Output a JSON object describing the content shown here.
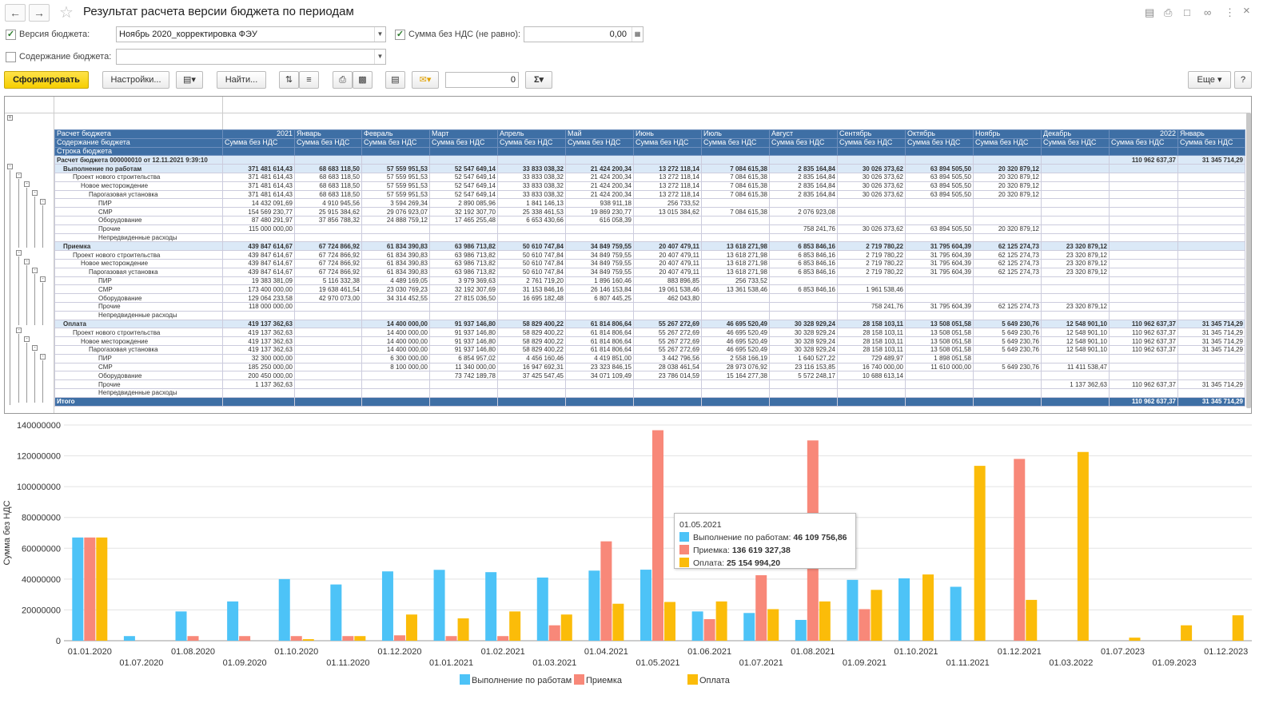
{
  "window": {
    "title": "Результат расчета версии бюджета по периодам"
  },
  "filters": {
    "version_label": "Версия бюджета:",
    "version_value": "Ноябрь 2020_корректировка ФЭУ",
    "sum_label": "Сумма без НДС (не равно):",
    "sum_value": "0,00",
    "content_label": "Содержание бюджета:",
    "content_value": ""
  },
  "toolbar": {
    "generate": "Сформировать",
    "settings": "Настройки...",
    "find": "Найти...",
    "counter": "0",
    "more": "Еще",
    "help": "?"
  },
  "colors": {
    "header": "#3e6fa5",
    "row_hl": "#dbe9f7",
    "blue": "#4dc3f7",
    "red": "#f88879",
    "yellow": "#fbbc09"
  },
  "report": {
    "header_rows": [
      [
        "Расчет бюджета",
        "2021",
        "Январь",
        "Февраль",
        "Март",
        "Апрель",
        "Май",
        "Июнь",
        "Июль",
        "Август",
        "Сентябрь",
        "Октябрь",
        "Ноябрь",
        "Декабрь",
        "2022",
        "Январь"
      ],
      [
        "Содержание бюджета",
        "Сумма без НДС",
        "Сумма без НДС",
        "Сумма без НДС",
        "Сумма без НДС",
        "Сумма без НДС",
        "Сумма без НДС",
        "Сумма без НДС",
        "Сумма без НДС",
        "Сумма без НДС",
        "Сумма без НДС",
        "Сумма без НДС",
        "Сумма без НДС",
        "Сумма без НДС",
        "Сумма без НДС",
        "Сумма без НДС"
      ],
      [
        "Строка бюджета",
        "",
        "",
        "",
        "",
        "",
        "",
        "",
        "",
        "",
        "",
        "",
        "",
        "",
        "",
        ""
      ]
    ],
    "rows": [
      {
        "k": "root",
        "c": [
          "Расчет бюджета 000000010 от 12.11.2021 9:39:10",
          "",
          "",
          "",
          "",
          "",
          "",
          "",
          "",
          "",
          "",
          "",
          "",
          "",
          "110 962 637,37",
          "31 345 714,29"
        ]
      },
      {
        "k": "lvl",
        "i": 1,
        "c": [
          "Выполнение по работам",
          "371 481 614,43",
          "68 683 118,50",
          "57 559 951,53",
          "52 547 649,14",
          "33 833 038,32",
          "21 424 200,34",
          "13 272 118,14",
          "7 084 615,38",
          "2 835 164,84",
          "30 026 373,62",
          "63 894 505,50",
          "20 320 879,12",
          "",
          "",
          ""
        ]
      },
      {
        "k": "",
        "i": 2,
        "c": [
          "Проект нового строительства",
          "371 481 614,43",
          "68 683 118,50",
          "57 559 951,53",
          "52 547 649,14",
          "33 833 038,32",
          "21 424 200,34",
          "13 272 118,14",
          "7 084 615,38",
          "2 835 164,84",
          "30 026 373,62",
          "63 894 505,50",
          "20 320 879,12",
          "",
          "",
          ""
        ]
      },
      {
        "k": "",
        "i": 3,
        "c": [
          "Новое месторождение",
          "371 481 614,43",
          "68 683 118,50",
          "57 559 951,53",
          "52 547 649,14",
          "33 833 038,32",
          "21 424 200,34",
          "13 272 118,14",
          "7 084 615,38",
          "2 835 164,84",
          "30 026 373,62",
          "63 894 505,50",
          "20 320 879,12",
          "",
          "",
          ""
        ]
      },
      {
        "k": "",
        "i": 4,
        "c": [
          "Парогазовая установка",
          "371 481 614,43",
          "68 683 118,50",
          "57 559 951,53",
          "52 547 649,14",
          "33 833 038,32",
          "21 424 200,34",
          "13 272 118,14",
          "7 084 615,38",
          "2 835 164,84",
          "30 026 373,62",
          "63 894 505,50",
          "20 320 879,12",
          "",
          "",
          ""
        ]
      },
      {
        "k": "",
        "i": 5,
        "c": [
          "ПИР",
          "14 432 091,69",
          "4 910 945,56",
          "3 594 269,34",
          "2 890 085,96",
          "1 841 146,13",
          "938 911,18",
          "256 733,52",
          "",
          "",
          "",
          "",
          "",
          "",
          "",
          ""
        ]
      },
      {
        "k": "",
        "i": 5,
        "c": [
          "СМР",
          "154 569 230,77",
          "25 915 384,62",
          "29 076 923,07",
          "32 192 307,70",
          "25 338 461,53",
          "19 869 230,77",
          "13 015 384,62",
          "7 084 615,38",
          "2 076 923,08",
          "",
          "",
          "",
          "",
          "",
          ""
        ]
      },
      {
        "k": "",
        "i": 5,
        "c": [
          "Оборудование",
          "87 480 291,97",
          "37 856 788,32",
          "24 888 759,12",
          "17 465 255,48",
          "6 653 430,66",
          "616 058,39",
          "",
          "",
          "",
          "",
          "",
          "",
          "",
          "",
          ""
        ]
      },
      {
        "k": "",
        "i": 5,
        "c": [
          "Прочие",
          "115 000 000,00",
          "",
          "",
          "",
          "",
          "",
          "",
          "",
          "758 241,76",
          "30 026 373,62",
          "63 894 505,50",
          "20 320 879,12",
          "",
          "",
          ""
        ]
      },
      {
        "k": "",
        "i": 5,
        "c": [
          "Непредвиденные расходы",
          "",
          "",
          "",
          "",
          "",
          "",
          "",
          "",
          "",
          "",
          "",
          "",
          "",
          "",
          ""
        ]
      },
      {
        "k": "lvl",
        "i": 1,
        "c": [
          "Приемка",
          "439 847 614,67",
          "67 724 866,92",
          "61 834 390,83",
          "63 986 713,82",
          "50 610 747,84",
          "34 849 759,55",
          "20 407 479,11",
          "13 618 271,98",
          "6 853 846,16",
          "2 719 780,22",
          "31 795 604,39",
          "62 125 274,73",
          "23 320 879,12",
          "",
          ""
        ]
      },
      {
        "k": "",
        "i": 2,
        "c": [
          "Проект нового строительства",
          "439 847 614,67",
          "67 724 866,92",
          "61 834 390,83",
          "63 986 713,82",
          "50 610 747,84",
          "34 849 759,55",
          "20 407 479,11",
          "13 618 271,98",
          "6 853 846,16",
          "2 719 780,22",
          "31 795 604,39",
          "62 125 274,73",
          "23 320 879,12",
          "",
          ""
        ]
      },
      {
        "k": "",
        "i": 3,
        "c": [
          "Новое месторождение",
          "439 847 614,67",
          "67 724 866,92",
          "61 834 390,83",
          "63 986 713,82",
          "50 610 747,84",
          "34 849 759,55",
          "20 407 479,11",
          "13 618 271,98",
          "6 853 846,16",
          "2 719 780,22",
          "31 795 604,39",
          "62 125 274,73",
          "23 320 879,12",
          "",
          ""
        ]
      },
      {
        "k": "",
        "i": 4,
        "c": [
          "Парогазовая установка",
          "439 847 614,67",
          "67 724 866,92",
          "61 834 390,83",
          "63 986 713,82",
          "50 610 747,84",
          "34 849 759,55",
          "20 407 479,11",
          "13 618 271,98",
          "6 853 846,16",
          "2 719 780,22",
          "31 795 604,39",
          "62 125 274,73",
          "23 320 879,12",
          "",
          ""
        ]
      },
      {
        "k": "",
        "i": 5,
        "c": [
          "ПИР",
          "19 383 381,09",
          "5 116 332,38",
          "4 489 169,05",
          "3 979 369,63",
          "2 761 719,20",
          "1 896 160,46",
          "883 896,85",
          "256 733,52",
          "",
          "",
          "",
          "",
          "",
          "",
          ""
        ]
      },
      {
        "k": "",
        "i": 5,
        "c": [
          "СМР",
          "173 400 000,00",
          "19 638 461,54",
          "23 030 769,23",
          "32 192 307,69",
          "31 153 846,16",
          "26 146 153,84",
          "19 061 538,46",
          "13 361 538,46",
          "6 853 846,16",
          "1 961 538,46",
          "",
          "",
          "",
          "",
          ""
        ]
      },
      {
        "k": "",
        "i": 5,
        "c": [
          "Оборудование",
          "129 064 233,58",
          "42 970 073,00",
          "34 314 452,55",
          "27 815 036,50",
          "16 695 182,48",
          "6 807 445,25",
          "462 043,80",
          "",
          "",
          "",
          "",
          "",
          "",
          "",
          ""
        ]
      },
      {
        "k": "",
        "i": 5,
        "c": [
          "Прочие",
          "118 000 000,00",
          "",
          "",
          "",
          "",
          "",
          "",
          "",
          "",
          "758 241,76",
          "31 795 604,39",
          "62 125 274,73",
          "23 320 879,12",
          "",
          ""
        ]
      },
      {
        "k": "",
        "i": 5,
        "c": [
          "Непредвиденные расходы",
          "",
          "",
          "",
          "",
          "",
          "",
          "",
          "",
          "",
          "",
          "",
          "",
          "",
          "",
          ""
        ]
      },
      {
        "k": "lvl",
        "i": 1,
        "c": [
          "Оплата",
          "419 137 362,63",
          "",
          "14 400 000,00",
          "91 937 146,80",
          "58 829 400,22",
          "61 814 806,64",
          "55 267 272,69",
          "46 695 520,49",
          "30 328 929,24",
          "28 158 103,11",
          "13 508 051,58",
          "5 649 230,76",
          "12 548 901,10",
          "110 962 637,37",
          "31 345 714,29"
        ]
      },
      {
        "k": "",
        "i": 2,
        "c": [
          "Проект нового строительства",
          "419 137 362,63",
          "",
          "14 400 000,00",
          "91 937 146,80",
          "58 829 400,22",
          "61 814 806,64",
          "55 267 272,69",
          "46 695 520,49",
          "30 328 929,24",
          "28 158 103,11",
          "13 508 051,58",
          "5 649 230,76",
          "12 548 901,10",
          "110 962 637,37",
          "31 345 714,29"
        ]
      },
      {
        "k": "",
        "i": 3,
        "c": [
          "Новое месторождение",
          "419 137 362,63",
          "",
          "14 400 000,00",
          "91 937 146,80",
          "58 829 400,22",
          "61 814 806,64",
          "55 267 272,69",
          "46 695 520,49",
          "30 328 929,24",
          "28 158 103,11",
          "13 508 051,58",
          "5 649 230,76",
          "12 548 901,10",
          "110 962 637,37",
          "31 345 714,29"
        ]
      },
      {
        "k": "",
        "i": 4,
        "c": [
          "Парогазовая установка",
          "419 137 362,63",
          "",
          "14 400 000,00",
          "91 937 146,80",
          "58 829 400,22",
          "61 814 806,64",
          "55 267 272,69",
          "46 695 520,49",
          "30 328 929,24",
          "28 158 103,11",
          "13 508 051,58",
          "5 649 230,76",
          "12 548 901,10",
          "110 962 637,37",
          "31 345 714,29"
        ]
      },
      {
        "k": "",
        "i": 5,
        "c": [
          "ПИР",
          "32 300 000,00",
          "",
          "6 300 000,00",
          "6 854 957,02",
          "4 456 160,46",
          "4 419 851,00",
          "3 442 796,56",
          "2 558 166,19",
          "1 640 527,22",
          "729 489,97",
          "1 898 051,58",
          "",
          "",
          "",
          ""
        ]
      },
      {
        "k": "",
        "i": 5,
        "c": [
          "СМР",
          "185 250 000,00",
          "",
          "8 100 000,00",
          "11 340 000,00",
          "16 947 692,31",
          "23 323 846,15",
          "28 038 461,54",
          "28 973 076,92",
          "23 116 153,85",
          "16 740 000,00",
          "11 610 000,00",
          "5 649 230,76",
          "11 411 538,47",
          "",
          ""
        ]
      },
      {
        "k": "",
        "i": 5,
        "c": [
          "Оборудование",
          "200 450 000,00",
          "",
          "",
          "73 742 189,78",
          "37 425 547,45",
          "34 071 109,49",
          "23 786 014,59",
          "15 164 277,38",
          "5 572 248,17",
          "10 688 613,14",
          "",
          "",
          "",
          "",
          ""
        ]
      },
      {
        "k": "",
        "i": 5,
        "c": [
          "Прочие",
          "1 137 362,63",
          "",
          "",
          "",
          "",
          "",
          "",
          "",
          "",
          "",
          "",
          "",
          "1 137 362,63",
          "110 962 637,37",
          "31 345 714,29"
        ]
      },
      {
        "k": "",
        "i": 5,
        "c": [
          "Непредвиденные расходы",
          "",
          "",
          "",
          "",
          "",
          "",
          "",
          "",
          "",
          "",
          "",
          "",
          "",
          "",
          ""
        ]
      },
      {
        "k": "total",
        "c": [
          "Итого",
          "",
          "",
          "",
          "",
          "",
          "",
          "",
          "",
          "",
          "",
          "",
          "",
          "",
          "110 962 637,37",
          "31 345 714,29"
        ]
      }
    ]
  },
  "chart_data": {
    "type": "bar",
    "ylabel": "Сумма без НДС",
    "ylim": [
      0,
      140000000
    ],
    "yticks": [
      "0",
      "20000000",
      "40000000",
      "60000000",
      "80000000",
      "100000000",
      "120000000",
      "140000000"
    ],
    "categories": [
      "01.01.2020",
      "01.07.2020",
      "01.08.2020",
      "01.09.2020",
      "01.10.2020",
      "01.11.2020",
      "01.12.2020",
      "01.01.2021",
      "01.02.2021",
      "01.03.2021",
      "01.04.2021",
      "01.05.2021",
      "01.06.2021",
      "01.07.2021",
      "01.08.2021",
      "01.09.2021",
      "01.10.2021",
      "01.11.2021",
      "01.12.2021",
      "01.03.2022",
      "01.07.2023",
      "01.09.2023",
      "01.12.2023"
    ],
    "series": [
      {
        "name": "Выполнение по работам",
        "color": "#4dc3f7",
        "values": [
          67000000,
          3000000,
          19000000,
          25500000,
          40000000,
          36500000,
          45000000,
          46000000,
          44500000,
          41000000,
          45500000,
          46109756.86,
          19000000,
          18000000,
          13500000,
          39500000,
          40500000,
          35000000,
          0,
          0,
          0,
          0,
          0
        ]
      },
      {
        "name": "Приемка",
        "color": "#f88879",
        "values": [
          67000000,
          0,
          3000000,
          3000000,
          3000000,
          3000000,
          3500000,
          3000000,
          3000000,
          10000000,
          64500000,
          136619327.38,
          14000000,
          42500000,
          130000000,
          20500000,
          0,
          0,
          118000000,
          0,
          0,
          0,
          0
        ]
      },
      {
        "name": "Оплата",
        "color": "#fbbc09",
        "values": [
          67000000,
          0,
          0,
          0,
          1000000,
          3000000,
          17000000,
          14500000,
          19000000,
          17000000,
          24000000,
          25154994.2,
          25500000,
          20500000,
          25500000,
          33000000,
          43000000,
          113500000,
          26500000,
          122500000,
          2000000,
          10000000,
          16500000
        ]
      }
    ],
    "legend_position": "bottom",
    "tooltip": {
      "date": "01.05.2021",
      "lines": [
        {
          "label": "Выполнение по работам:",
          "value": "46 109 756,86"
        },
        {
          "label": "Приемка:",
          "value": "136 619 327,38"
        },
        {
          "label": "Оплата:",
          "value": "25 154 994,20"
        }
      ]
    }
  }
}
